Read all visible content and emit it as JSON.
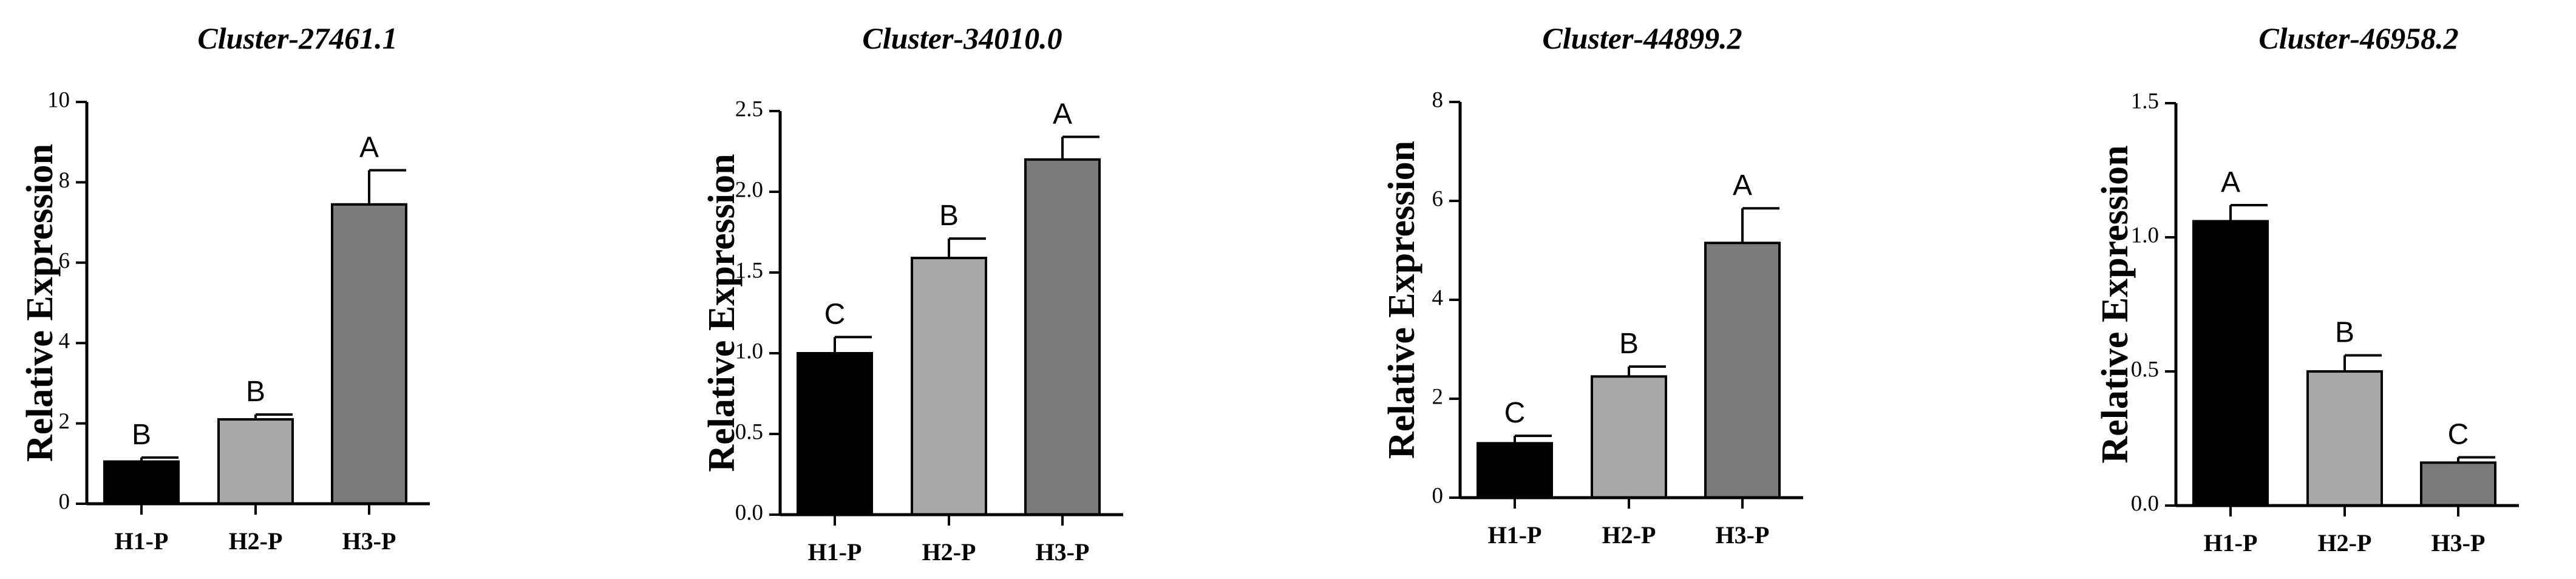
{
  "chart_data": [
    {
      "type": "bar",
      "title": "Cluster-27461.1",
      "ylabel": "Relative Expression",
      "xlabel": "",
      "categories": [
        "H1-P",
        "H2-P",
        "H3-P"
      ],
      "values": [
        1.05,
        2.1,
        7.45
      ],
      "errors": [
        0.1,
        0.12,
        0.85
      ],
      "significance": [
        "B",
        "B",
        "A"
      ],
      "ylim": [
        0,
        10
      ],
      "yticks": [
        0,
        2,
        4,
        6,
        8,
        10
      ],
      "ytick_labels": [
        "0",
        "2",
        "4",
        "6",
        "8",
        "10"
      ],
      "grid": false
    },
    {
      "type": "bar",
      "title": "Cluster-34010.0",
      "ylabel": "Relative Expression",
      "xlabel": "",
      "categories": [
        "H1-P",
        "H2-P",
        "H3-P"
      ],
      "values": [
        1.0,
        1.59,
        2.2
      ],
      "errors": [
        0.1,
        0.12,
        0.14
      ],
      "significance": [
        "C",
        "B",
        "A"
      ],
      "ylim": [
        0,
        2.5
      ],
      "yticks": [
        0,
        0.5,
        1.0,
        1.5,
        2.0,
        2.5
      ],
      "ytick_labels": [
        "0.0",
        "0.5",
        "1.0",
        "1.5",
        "2.0",
        "2.5"
      ],
      "grid": false
    },
    {
      "type": "bar",
      "title": "Cluster-44899.2",
      "ylabel": "Relative Expression",
      "xlabel": "",
      "categories": [
        "H1-P",
        "H2-P",
        "H3-P"
      ],
      "values": [
        1.1,
        2.45,
        5.15
      ],
      "errors": [
        0.15,
        0.2,
        0.7
      ],
      "significance": [
        "C",
        "B",
        "A"
      ],
      "ylim": [
        0,
        8
      ],
      "yticks": [
        0,
        2,
        4,
        6,
        8
      ],
      "ytick_labels": [
        "0",
        "2",
        "4",
        "6",
        "8"
      ],
      "grid": false
    },
    {
      "type": "bar",
      "title": "Cluster-46958.2",
      "ylabel": "Relative Expression",
      "xlabel": "",
      "categories": [
        "H1-P",
        "H2-P",
        "H3-P"
      ],
      "values": [
        1.06,
        0.5,
        0.16
      ],
      "errors": [
        0.06,
        0.06,
        0.02
      ],
      "significance": [
        "A",
        "B",
        "C"
      ],
      "ylim": [
        0,
        1.5
      ],
      "yticks": [
        0,
        0.5,
        1.0,
        1.5
      ],
      "ytick_labels": [
        "0.0",
        "0.5",
        "1.0",
        "1.5"
      ],
      "grid": false
    }
  ],
  "colors": {
    "bars": [
      "#000000",
      "#a8a8ab",
      "#7a7a7a"
    ],
    "axis": "#000000"
  }
}
